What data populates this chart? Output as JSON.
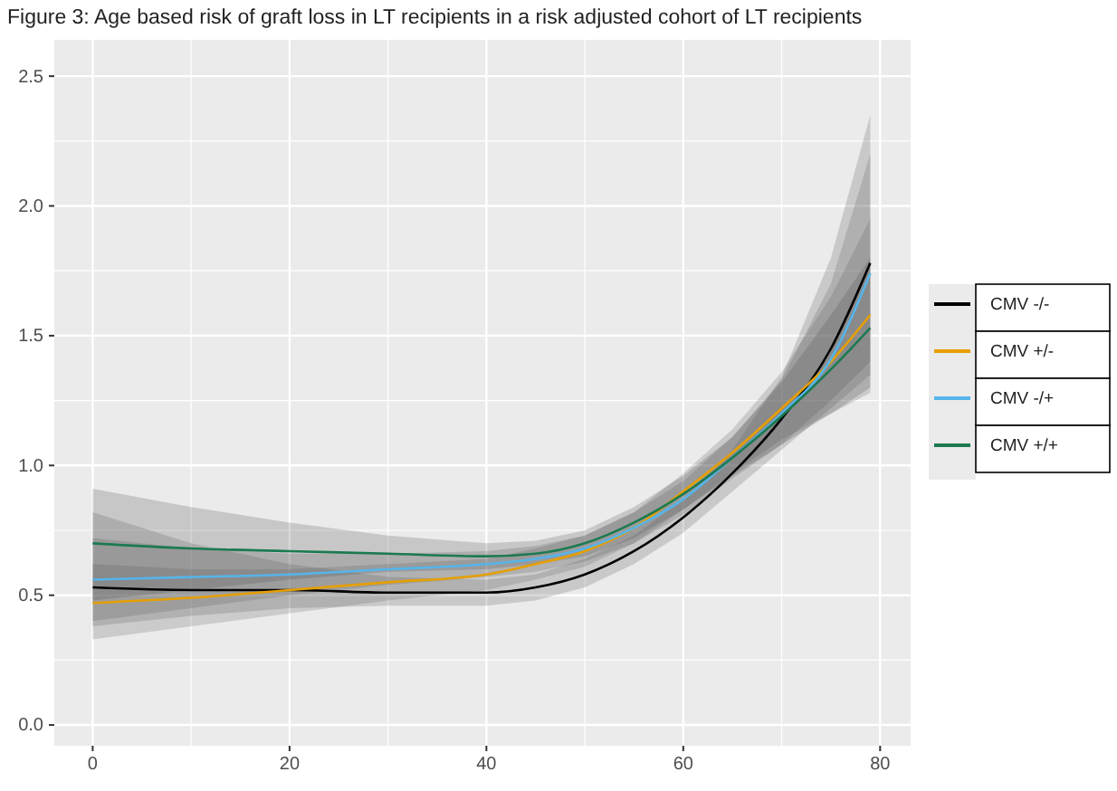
{
  "chart_data": {
    "type": "line",
    "title": "Figure 3: Age based risk of graft loss in LT recipients in a risk adjusted cohort of LT recipients",
    "x": [
      0,
      10,
      20,
      30,
      40,
      45,
      50,
      55,
      60,
      65,
      70,
      75,
      79
    ],
    "series": [
      {
        "name": "CMV -/-",
        "color": "#000000",
        "values": [
          0.53,
          0.52,
          0.52,
          0.51,
          0.51,
          0.53,
          0.58,
          0.67,
          0.8,
          0.97,
          1.18,
          1.45,
          1.78
        ],
        "lower": [
          0.38,
          0.42,
          0.45,
          0.46,
          0.46,
          0.48,
          0.53,
          0.62,
          0.74,
          0.9,
          1.06,
          1.22,
          1.35
        ],
        "upper": [
          0.82,
          0.7,
          0.62,
          0.57,
          0.56,
          0.58,
          0.64,
          0.73,
          0.87,
          1.06,
          1.34,
          1.8,
          2.35
        ]
      },
      {
        "name": "CMV +/-",
        "color": "#e69f00",
        "values": [
          0.47,
          0.49,
          0.52,
          0.55,
          0.58,
          0.62,
          0.67,
          0.76,
          0.9,
          1.05,
          1.22,
          1.4,
          1.58
        ],
        "lower": [
          0.33,
          0.38,
          0.43,
          0.48,
          0.52,
          0.56,
          0.61,
          0.7,
          0.83,
          0.97,
          1.1,
          1.2,
          1.28
        ],
        "upper": [
          0.62,
          0.6,
          0.6,
          0.62,
          0.64,
          0.68,
          0.73,
          0.82,
          0.97,
          1.14,
          1.36,
          1.65,
          1.95
        ]
      },
      {
        "name": "CMV -/+",
        "color": "#56b4e9",
        "values": [
          0.56,
          0.57,
          0.58,
          0.6,
          0.62,
          0.64,
          0.68,
          0.76,
          0.87,
          1.03,
          1.2,
          1.41,
          1.74
        ],
        "lower": [
          0.4,
          0.45,
          0.5,
          0.54,
          0.57,
          0.59,
          0.63,
          0.7,
          0.81,
          0.95,
          1.08,
          1.25,
          1.4
        ],
        "upper": [
          0.72,
          0.68,
          0.66,
          0.66,
          0.67,
          0.69,
          0.73,
          0.82,
          0.94,
          1.11,
          1.33,
          1.7,
          2.2
        ]
      },
      {
        "name": "CMV +/+",
        "color": "#1b7a50",
        "values": [
          0.7,
          0.68,
          0.67,
          0.66,
          0.65,
          0.66,
          0.7,
          0.78,
          0.89,
          1.03,
          1.19,
          1.37,
          1.53
        ],
        "lower": [
          0.48,
          0.52,
          0.56,
          0.59,
          0.6,
          0.62,
          0.65,
          0.72,
          0.83,
          0.96,
          1.08,
          1.2,
          1.3
        ],
        "upper": [
          0.91,
          0.84,
          0.78,
          0.73,
          0.7,
          0.71,
          0.75,
          0.84,
          0.96,
          1.11,
          1.32,
          1.58,
          1.8
        ]
      }
    ],
    "xlim": [
      -3.9,
      83.1
    ],
    "ylim": [
      -0.08,
      2.64
    ],
    "xticks": [
      0,
      20,
      40,
      60,
      80
    ],
    "yticks": [
      {
        "value": 0,
        "label": "0.0"
      },
      {
        "value": 0.5,
        "label": "0.5"
      },
      {
        "value": 1,
        "label": "1.0"
      },
      {
        "value": 1.5,
        "label": "1.5"
      },
      {
        "value": 2,
        "label": "2.0"
      },
      {
        "value": 2.5,
        "label": "2.5"
      }
    ],
    "grid": true,
    "legend": "right"
  }
}
